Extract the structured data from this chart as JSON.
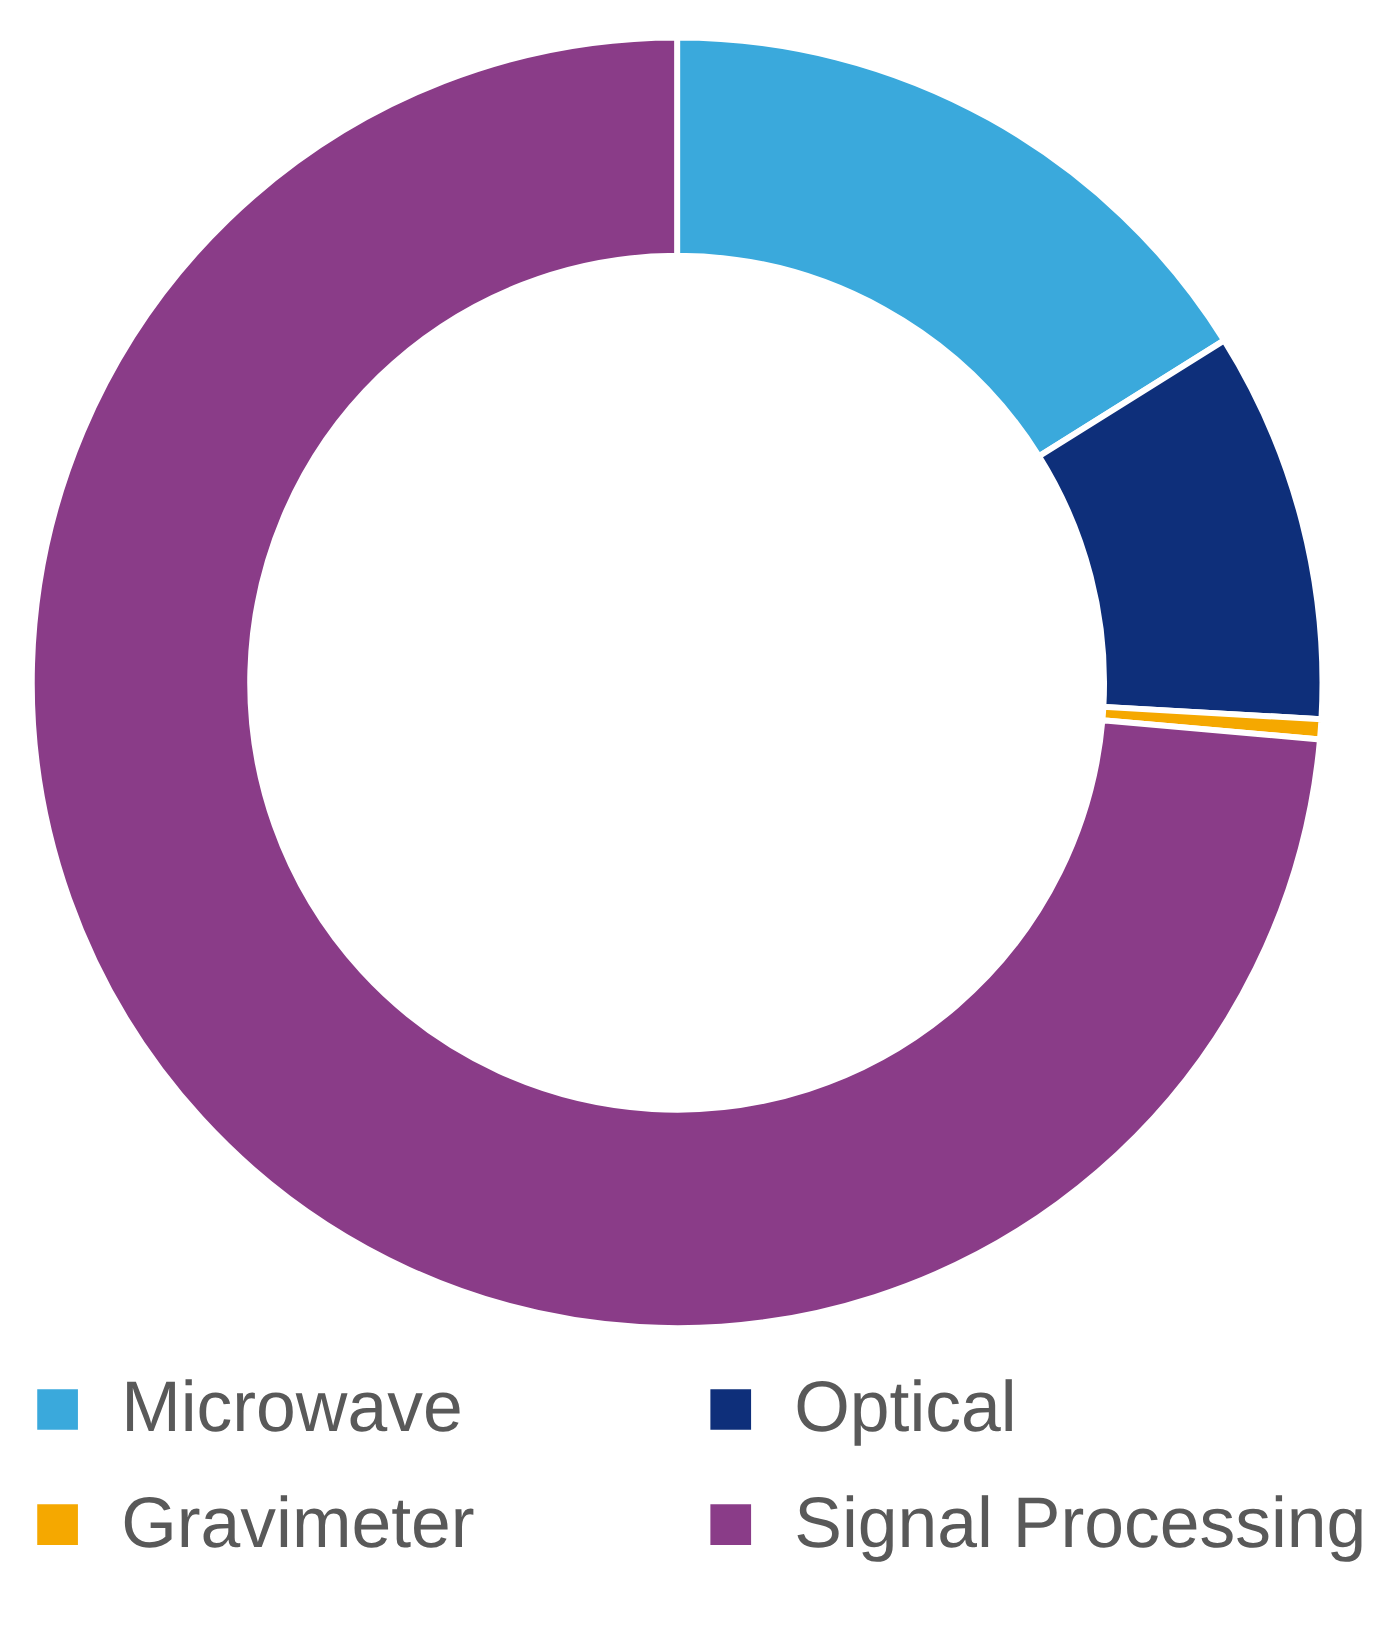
{
  "chart_data": {
    "type": "donut",
    "categories": [
      "Microwave",
      "Optical",
      "Gravimeter",
      "Signal Processing"
    ],
    "values": [
      16.1,
      9.8,
      0.5,
      73.6
    ],
    "colors": [
      "#3aa9dc",
      "#0e2f7a",
      "#f5a800",
      "#8a3c88"
    ],
    "legend": "bottom"
  }
}
